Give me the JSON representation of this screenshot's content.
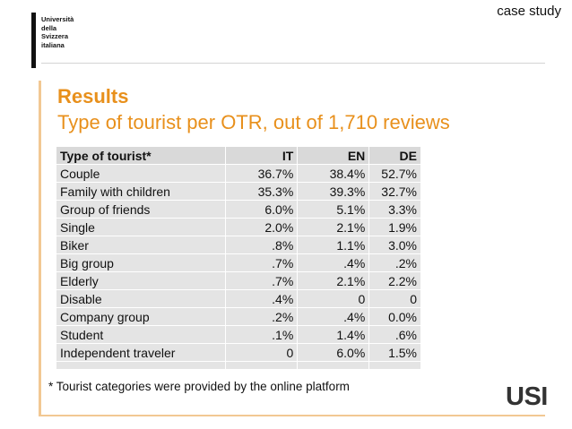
{
  "header": {
    "tag": "case study",
    "logo_lines": [
      "Università",
      "della",
      "Svizzera",
      "italiana"
    ]
  },
  "slide": {
    "title": "Results",
    "subtitle": "Type of tourist per OTR, out of 1,710 reviews"
  },
  "table": {
    "columns": [
      "Type of tourist*",
      "IT",
      "EN",
      "DE"
    ],
    "rows": [
      [
        "Couple",
        "36.7%",
        "38.4%",
        "52.7%"
      ],
      [
        "Family with children",
        "35.3%",
        "39.3%",
        "32.7%"
      ],
      [
        "Group of friends",
        "6.0%",
        "5.1%",
        "3.3%"
      ],
      [
        "Single",
        "2.0%",
        "2.1%",
        "1.9%"
      ],
      [
        "Biker",
        ".8%",
        "1.1%",
        "3.0%"
      ],
      [
        "Big group",
        ".7%",
        ".4%",
        ".2%"
      ],
      [
        "Elderly",
        ".7%",
        "2.1%",
        "2.2%"
      ],
      [
        "Disable",
        ".4%",
        "0",
        "0"
      ],
      [
        "Company group",
        ".2%",
        ".4%",
        "0.0%"
      ],
      [
        "Student",
        ".1%",
        "1.4%",
        ".6%"
      ],
      [
        "Independent traveler",
        "0",
        "6.0%",
        "1.5%"
      ]
    ]
  },
  "footer": {
    "footnote": "* Tourist categories were provided by the online platform",
    "usi_logo": "USI"
  },
  "colors": {
    "accent": "#e8901c",
    "rule": "#f2c893",
    "table_bg": "#e4e4e4"
  }
}
